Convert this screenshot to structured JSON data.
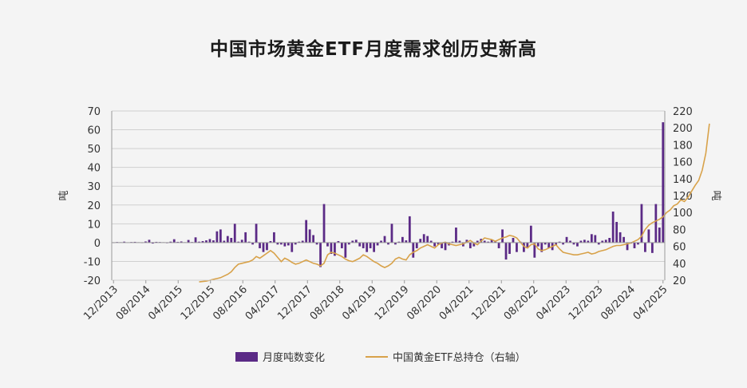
{
  "title": "中国市场黄金ETF月度需求创历史新高",
  "colors": {
    "bar": "#5b2a86",
    "line": "#d8a24a",
    "grid": "#d0d0d0",
    "axis": "#9a9a9a"
  },
  "chart_data": {
    "type": "bar+line",
    "title": "中国市场黄金ETF月度需求创历史新高",
    "left_axis": {
      "label": "吨",
      "range": [
        -20,
        70
      ],
      "ticks": [
        70,
        60,
        50,
        40,
        30,
        20,
        10,
        0,
        -10,
        -20
      ]
    },
    "right_axis": {
      "label": "吨",
      "range": [
        20,
        220
      ],
      "ticks": [
        220,
        200,
        180,
        160,
        140,
        120,
        100,
        80,
        60,
        40,
        20
      ]
    },
    "x_ticks": [
      "12/2013",
      "08/2014",
      "04/2015",
      "12/2015",
      "08/2016",
      "04/2017",
      "12/2017",
      "08/2018",
      "04/2019",
      "12/2019",
      "08/2020",
      "04/2021",
      "12/2021",
      "08/2022",
      "04/2023",
      "12/2023",
      "08/2024",
      "04/2025"
    ],
    "legend": {
      "position": "bottom",
      "bar": "月度吨数变化",
      "line": "中国黄金ETF总持仓（右轴）"
    },
    "grid": true,
    "series": [
      {
        "name": "月度吨数变化",
        "type": "bar",
        "values": [
          0,
          0.3,
          0.2,
          0.5,
          0.1,
          0.3,
          0.4,
          0.2,
          -0.2,
          0.6,
          1.5,
          -0.5,
          0.4,
          0.3,
          0.2,
          -0.3,
          0.5,
          1.8,
          0.4,
          0.6,
          0.2,
          1.4,
          0.3,
          2.8,
          0.5,
          0.8,
          1.2,
          1.9,
          1.2,
          6,
          7,
          1,
          3.5,
          2.5,
          10,
          0.5,
          1.5,
          5.5,
          0.5,
          -1,
          10,
          -3,
          -5,
          -4,
          0.8,
          5.5,
          -1,
          -1,
          -2,
          -1.5,
          -5,
          -1,
          0.5,
          1,
          12,
          7,
          4,
          -1,
          -13,
          20.5,
          -2,
          -6,
          -7,
          0.8,
          -3,
          -8,
          -1,
          1,
          1.5,
          -2,
          -3,
          -5,
          -3,
          -5,
          -1.5,
          1,
          3.5,
          -1,
          10,
          -1,
          0.5,
          3,
          1.2,
          14,
          -8,
          -3,
          2,
          4.5,
          3.5,
          1,
          -2,
          -1,
          -3,
          -4,
          -1.5,
          0.5,
          8,
          1,
          -2,
          1.5,
          -3,
          -2,
          1,
          2,
          1,
          0.5,
          1.5,
          1,
          -3,
          7,
          -9,
          -6,
          2.5,
          -5,
          0.5,
          -5,
          -3,
          9,
          -8,
          -2,
          -5,
          -1,
          -3,
          -4,
          -1.5,
          0.5,
          -1,
          3,
          1,
          -1,
          -2,
          1,
          1.5,
          1,
          4.5,
          4,
          -1,
          1,
          1.5,
          2.5,
          16.5,
          11,
          5.5,
          3,
          -4,
          -0.5,
          -3,
          -1,
          20.5,
          -5,
          7,
          -5.5,
          20.5,
          8,
          64
        ]
      },
      {
        "name": "中国黄金ETF总持仓（右轴）",
        "type": "line",
        "points": [
          [
            24,
            18
          ],
          [
            25,
            18.5
          ],
          [
            26,
            19
          ],
          [
            27,
            20
          ],
          [
            28,
            21
          ],
          [
            29,
            22
          ],
          [
            30,
            23
          ],
          [
            31,
            25
          ],
          [
            32,
            27
          ],
          [
            33,
            30
          ],
          [
            34,
            35
          ],
          [
            35,
            39
          ],
          [
            36,
            40
          ],
          [
            37,
            41
          ],
          [
            38,
            42
          ],
          [
            39,
            44
          ],
          [
            40,
            48
          ],
          [
            41,
            46
          ],
          [
            42,
            49
          ],
          [
            43,
            52
          ],
          [
            44,
            55
          ],
          [
            45,
            52
          ],
          [
            46,
            47
          ],
          [
            47,
            42
          ],
          [
            48,
            46
          ],
          [
            49,
            44
          ],
          [
            50,
            41
          ],
          [
            51,
            39
          ],
          [
            52,
            40
          ],
          [
            53,
            42
          ],
          [
            54,
            44
          ],
          [
            55,
            42
          ],
          [
            56,
            40
          ],
          [
            57,
            39
          ],
          [
            58,
            37
          ],
          [
            59,
            40
          ],
          [
            60,
            50
          ],
          [
            61,
            53
          ],
          [
            62,
            52
          ],
          [
            63,
            50
          ],
          [
            64,
            48
          ],
          [
            65,
            45
          ],
          [
            66,
            43
          ],
          [
            67,
            42
          ],
          [
            68,
            44
          ],
          [
            69,
            46
          ],
          [
            70,
            50
          ],
          [
            71,
            48
          ],
          [
            72,
            45
          ],
          [
            73,
            42
          ],
          [
            74,
            40
          ],
          [
            75,
            37
          ],
          [
            76,
            35
          ],
          [
            77,
            37
          ],
          [
            78,
            40
          ],
          [
            79,
            45
          ],
          [
            80,
            47
          ],
          [
            81,
            45
          ],
          [
            82,
            44
          ],
          [
            83,
            50
          ],
          [
            84,
            53
          ],
          [
            85,
            55
          ],
          [
            86,
            58
          ],
          [
            87,
            60
          ],
          [
            88,
            62
          ],
          [
            89,
            60
          ],
          [
            90,
            58
          ],
          [
            91,
            62
          ],
          [
            92,
            64
          ],
          [
            93,
            65
          ],
          [
            94,
            63
          ],
          [
            95,
            62
          ],
          [
            96,
            61
          ],
          [
            97,
            62
          ],
          [
            98,
            63
          ],
          [
            99,
            65
          ],
          [
            100,
            67
          ],
          [
            101,
            64
          ],
          [
            102,
            62
          ],
          [
            103,
            66
          ],
          [
            104,
            70
          ],
          [
            105,
            69
          ],
          [
            106,
            68
          ],
          [
            107,
            66
          ],
          [
            108,
            68
          ],
          [
            109,
            70
          ],
          [
            110,
            71
          ],
          [
            111,
            73
          ],
          [
            112,
            72
          ],
          [
            113,
            70
          ],
          [
            114,
            65
          ],
          [
            115,
            60
          ],
          [
            116,
            58
          ],
          [
            117,
            62
          ],
          [
            118,
            63
          ],
          [
            119,
            57
          ],
          [
            120,
            55
          ],
          [
            121,
            56
          ],
          [
            122,
            58
          ],
          [
            123,
            60
          ],
          [
            124,
            62
          ],
          [
            125,
            57
          ],
          [
            126,
            53
          ],
          [
            127,
            52
          ],
          [
            128,
            51
          ],
          [
            129,
            50
          ],
          [
            130,
            50
          ],
          [
            131,
            51
          ],
          [
            132,
            52
          ],
          [
            133,
            53
          ],
          [
            134,
            51
          ],
          [
            135,
            52
          ],
          [
            136,
            54
          ],
          [
            137,
            55
          ],
          [
            138,
            56
          ],
          [
            139,
            58
          ],
          [
            140,
            60
          ],
          [
            141,
            61
          ],
          [
            142,
            61
          ],
          [
            143,
            62
          ],
          [
            144,
            63
          ],
          [
            145,
            64
          ],
          [
            146,
            66
          ],
          [
            147,
            68
          ],
          [
            148,
            72
          ],
          [
            149,
            80
          ],
          [
            150,
            85
          ],
          [
            151,
            88
          ],
          [
            152,
            90
          ],
          [
            153,
            92
          ],
          [
            154,
            95
          ],
          [
            155,
            100
          ],
          [
            156,
            103
          ],
          [
            157,
            108
          ],
          [
            158,
            110
          ],
          [
            159,
            115
          ],
          [
            160,
            113
          ],
          [
            161,
            118
          ],
          [
            162,
            125
          ],
          [
            163,
            132
          ],
          [
            164,
            138
          ],
          [
            165,
            150
          ],
          [
            166,
            170
          ],
          [
            167,
            205
          ]
        ]
      }
    ]
  }
}
